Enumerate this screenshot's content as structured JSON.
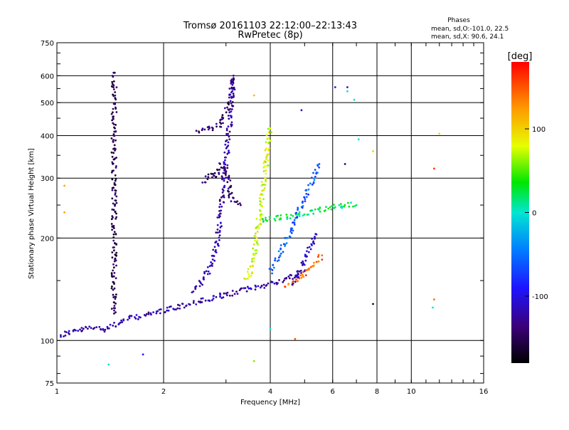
{
  "chart_data": {
    "type": "scatter",
    "title": "Tromsø 20161103 22:12:00–22:13:43",
    "subtitle": "RwPretec (8p)",
    "xlabel": "Frequency [MHz]",
    "ylabel": "Stationary phase Virtual Height [km]",
    "x_scale": "log",
    "y_scale": "log",
    "xlim": [
      1,
      16
    ],
    "ylim": [
      75,
      750
    ],
    "x_ticks": [
      1,
      2,
      4,
      6,
      8,
      10,
      16
    ],
    "x_tick_labels": [
      "1",
      "2",
      "4",
      "6",
      "8",
      "10",
      "16"
    ],
    "y_ticks": [
      75,
      100,
      200,
      300,
      400,
      500,
      600,
      750
    ],
    "y_tick_labels": [
      "75",
      "100",
      "200",
      "300",
      "400",
      "500",
      "600",
      "750"
    ],
    "grid": true,
    "phases_title": "Phases",
    "phases_stats": [
      "mean, sd,O:-101.0, 22.5",
      "mean, sd,X:  90.6, 24.1"
    ],
    "colorbar": {
      "label": "[deg]",
      "range": [
        -180,
        180
      ],
      "ticks": [
        -100,
        0,
        100
      ],
      "tick_labels": [
        "-100",
        "0",
        "100"
      ]
    },
    "traces": [
      {
        "phase": -120,
        "points": [
          [
            1.02,
            103
          ],
          [
            1.08,
            106
          ],
          [
            1.15,
            107
          ],
          [
            1.25,
            109
          ],
          [
            1.35,
            108
          ],
          [
            1.45,
            111
          ],
          [
            1.6,
            116
          ],
          [
            1.75,
            118
          ],
          [
            1.9,
            121
          ],
          [
            2.1,
            124
          ],
          [
            2.3,
            127
          ],
          [
            2.5,
            130
          ],
          [
            2.7,
            132
          ],
          [
            2.9,
            135
          ],
          [
            3.1,
            137
          ],
          [
            3.3,
            140
          ],
          [
            3.6,
            143
          ],
          [
            3.9,
            146
          ],
          [
            4.3,
            150
          ],
          [
            4.7,
            155
          ],
          [
            5.0,
            160
          ]
        ]
      },
      {
        "phase": -120,
        "points": [
          [
            2.4,
            140
          ],
          [
            2.55,
            148
          ],
          [
            2.65,
            158
          ],
          [
            2.72,
            168
          ],
          [
            2.78,
            180
          ],
          [
            2.83,
            195
          ],
          [
            2.87,
            215
          ],
          [
            2.9,
            240
          ],
          [
            2.93,
            265
          ],
          [
            2.96,
            290
          ],
          [
            2.99,
            320
          ],
          [
            3.02,
            360
          ],
          [
            3.05,
            400
          ],
          [
            3.08,
            450
          ],
          [
            3.1,
            500
          ],
          [
            3.12,
            560
          ],
          [
            3.15,
            600
          ]
        ]
      },
      {
        "phase": -140,
        "points": [
          [
            2.6,
            290
          ],
          [
            2.7,
            310
          ],
          [
            2.8,
            300
          ],
          [
            2.9,
            330
          ],
          [
            3.0,
            320
          ],
          [
            3.05,
            300
          ],
          [
            3.1,
            260
          ],
          [
            3.2,
            255
          ],
          [
            3.3,
            250
          ]
        ]
      },
      {
        "phase": -140,
        "points": [
          [
            2.5,
            410
          ],
          [
            2.7,
            420
          ],
          [
            2.9,
            430
          ],
          [
            3.0,
            470
          ],
          [
            3.1,
            510
          ],
          [
            3.15,
            590
          ]
        ]
      },
      {
        "phase": -150,
        "points": [
          [
            1.45,
            610
          ],
          [
            1.45,
            470
          ],
          [
            1.45,
            430
          ],
          [
            1.45,
            390
          ],
          [
            1.45,
            360
          ],
          [
            1.45,
            320
          ],
          [
            1.45,
            285
          ],
          [
            1.45,
            250
          ],
          [
            1.45,
            225
          ],
          [
            1.45,
            200
          ],
          [
            1.45,
            180
          ],
          [
            1.45,
            160
          ],
          [
            1.45,
            140
          ],
          [
            1.45,
            120
          ]
        ]
      },
      {
        "phase": 80,
        "points": [
          [
            3.4,
            150
          ],
          [
            3.5,
            158
          ],
          [
            3.55,
            168
          ],
          [
            3.6,
            180
          ],
          [
            3.65,
            195
          ],
          [
            3.7,
            215
          ],
          [
            3.75,
            240
          ],
          [
            3.8,
            270
          ],
          [
            3.85,
            300
          ],
          [
            3.9,
            340
          ],
          [
            3.95,
            380
          ],
          [
            4.0,
            420
          ]
        ]
      },
      {
        "phase": 20,
        "points": [
          [
            3.8,
            225
          ],
          [
            4.0,
            228
          ],
          [
            4.3,
            230
          ],
          [
            4.6,
            232
          ],
          [
            5.0,
            236
          ],
          [
            5.4,
            240
          ],
          [
            5.8,
            245
          ],
          [
            6.2,
            248
          ],
          [
            6.6,
            252
          ],
          [
            7.0,
            250
          ]
        ]
      },
      {
        "phase": -60,
        "points": [
          [
            4.0,
            160
          ],
          [
            4.2,
            175
          ],
          [
            4.4,
            195
          ],
          [
            4.6,
            215
          ],
          [
            4.8,
            240
          ],
          [
            5.0,
            265
          ],
          [
            5.2,
            290
          ],
          [
            5.5,
            330
          ]
        ]
      },
      {
        "phase": 140,
        "points": [
          [
            4.4,
            145
          ],
          [
            4.6,
            148
          ],
          [
            4.8,
            152
          ],
          [
            5.0,
            157
          ],
          [
            5.2,
            163
          ],
          [
            5.4,
            170
          ],
          [
            5.6,
            178
          ]
        ]
      },
      {
        "phase": -110,
        "points": [
          [
            4.6,
            148
          ],
          [
            4.8,
            160
          ],
          [
            5.0,
            175
          ],
          [
            5.2,
            190
          ],
          [
            5.4,
            205
          ]
        ]
      }
    ],
    "scattered_points": [
      {
        "x": 1.05,
        "y": 285,
        "phase": 120
      },
      {
        "x": 1.05,
        "y": 238,
        "phase": 120
      },
      {
        "x": 1.4,
        "y": 85,
        "phase": 0
      },
      {
        "x": 1.75,
        "y": 91,
        "phase": -90
      },
      {
        "x": 3.6,
        "y": 87,
        "phase": 60
      },
      {
        "x": 3.6,
        "y": 525,
        "phase": 110
      },
      {
        "x": 4.9,
        "y": 475,
        "phase": -110
      },
      {
        "x": 6.1,
        "y": 555,
        "phase": -100
      },
      {
        "x": 6.6,
        "y": 555,
        "phase": -110
      },
      {
        "x": 6.6,
        "y": 540,
        "phase": 0
      },
      {
        "x": 6.9,
        "y": 510,
        "phase": 0
      },
      {
        "x": 7.8,
        "y": 360,
        "phase": 100
      },
      {
        "x": 7.1,
        "y": 390,
        "phase": 0
      },
      {
        "x": 6.5,
        "y": 330,
        "phase": -140
      },
      {
        "x": 7.8,
        "y": 128,
        "phase": -160
      },
      {
        "x": 11.6,
        "y": 320,
        "phase": 160
      },
      {
        "x": 12.0,
        "y": 405,
        "phase": 100
      },
      {
        "x": 11.5,
        "y": 125,
        "phase": 0
      },
      {
        "x": 11.6,
        "y": 132,
        "phase": 140
      },
      {
        "x": 4.7,
        "y": 101,
        "phase": 150
      },
      {
        "x": 4.0,
        "y": 108,
        "phase": 0
      }
    ]
  }
}
